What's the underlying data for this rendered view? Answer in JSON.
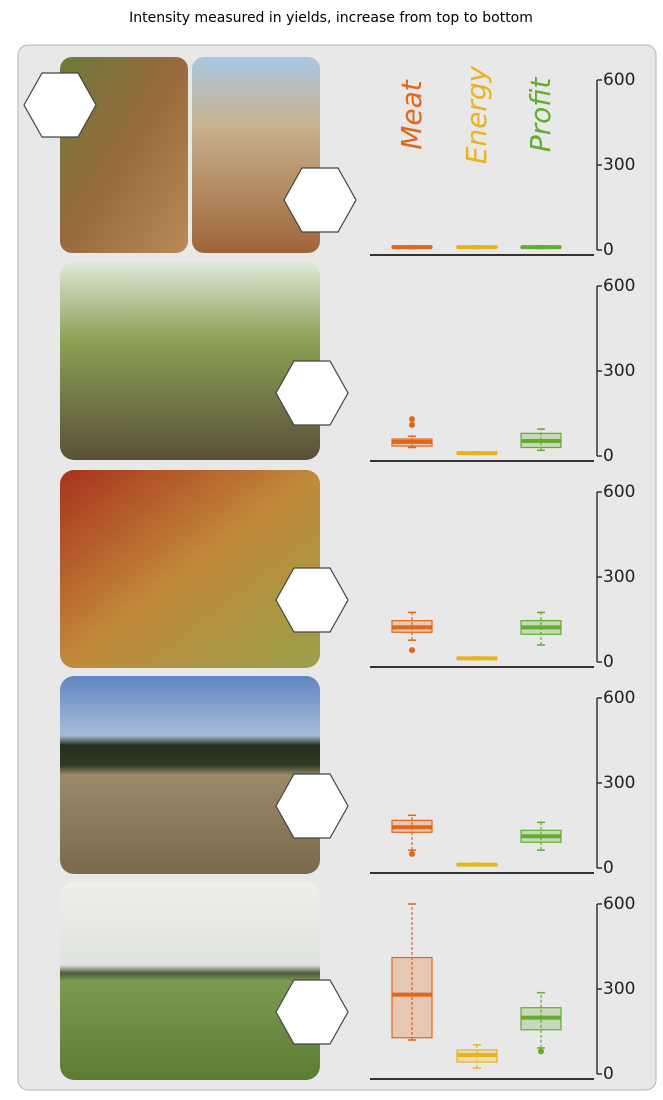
{
  "title": "Intensity measured in yields, increase from top to bottom",
  "chart_data": [
    {
      "type": "box",
      "categories": [
        "Meat",
        "Energy",
        "Profit"
      ],
      "ylim": [
        0,
        600
      ],
      "yticks": [
        0,
        300,
        600
      ],
      "series": [
        {
          "color": "#e0661c",
          "min": 5,
          "q1": 8,
          "median": 10,
          "q3": 12,
          "max": 15,
          "outliers": []
        },
        {
          "color": "#e8b41c",
          "min": 5,
          "q1": 8,
          "median": 10,
          "q3": 12,
          "max": 15,
          "outliers": []
        },
        {
          "color": "#62ad2e",
          "min": 5,
          "q1": 8,
          "median": 10,
          "q3": 12,
          "max": 15,
          "outliers": []
        }
      ]
    },
    {
      "type": "box",
      "ylim": [
        0,
        600
      ],
      "yticks": [
        0,
        300,
        600
      ],
      "series": [
        {
          "color": "#e0661c",
          "min": 30,
          "q1": 35,
          "median": 50,
          "q3": 60,
          "max": 70,
          "outliers": [
            110,
            130
          ]
        },
        {
          "color": "#e8b41c",
          "min": 5,
          "q1": 8,
          "median": 10,
          "q3": 13,
          "max": 15,
          "outliers": []
        },
        {
          "color": "#62ad2e",
          "min": 20,
          "q1": 30,
          "median": 53,
          "q3": 80,
          "max": 95,
          "outliers": []
        }
      ]
    },
    {
      "type": "box",
      "ylim": [
        0,
        600
      ],
      "yticks": [
        0,
        300,
        600
      ],
      "series": [
        {
          "color": "#e0661c",
          "min": 77,
          "q1": 105,
          "median": 122,
          "q3": 146,
          "max": 175,
          "outliers": [
            42
          ]
        },
        {
          "color": "#e8b41c",
          "min": 8,
          "q1": 10,
          "median": 13,
          "q3": 16,
          "max": 18,
          "outliers": []
        },
        {
          "color": "#62ad2e",
          "min": 60,
          "q1": 98,
          "median": 122,
          "q3": 146,
          "max": 175,
          "outliers": []
        }
      ]
    },
    {
      "type": "box",
      "ylim": [
        0,
        600
      ],
      "yticks": [
        0,
        300,
        600
      ],
      "series": [
        {
          "color": "#e0661c",
          "min": 63,
          "q1": 126,
          "median": 144,
          "q3": 168,
          "max": 186,
          "outliers": [
            50
          ]
        },
        {
          "color": "#e8b41c",
          "min": 8,
          "q1": 10,
          "median": 12,
          "q3": 15,
          "max": 17,
          "outliers": []
        },
        {
          "color": "#62ad2e",
          "min": 63,
          "q1": 91,
          "median": 112,
          "q3": 133,
          "max": 161,
          "outliers": []
        }
      ]
    },
    {
      "type": "box",
      "ylim": [
        0,
        600
      ],
      "yticks": [
        0,
        300,
        600
      ],
      "series": [
        {
          "color": "#e0661c",
          "min": 120,
          "q1": 128,
          "median": 280,
          "q3": 411,
          "max": 600,
          "outliers": []
        },
        {
          "color": "#e8b41c",
          "min": 21,
          "q1": 42,
          "median": 67,
          "q3": 85,
          "max": 103,
          "outliers": []
        },
        {
          "color": "#62ad2e",
          "min": 92,
          "q1": 156,
          "median": 199,
          "q3": 234,
          "max": 287,
          "outliers": [
            80
          ]
        }
      ]
    }
  ]
}
